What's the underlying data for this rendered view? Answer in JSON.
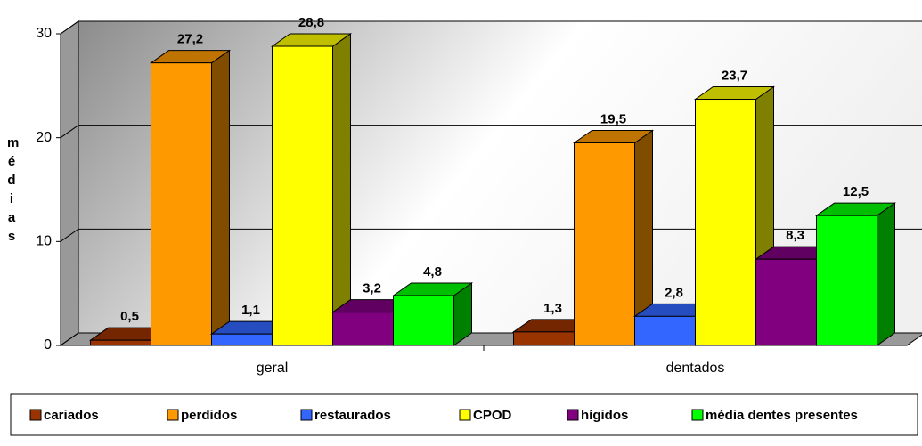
{
  "chart_data": {
    "type": "bar3d",
    "ylabel": "médias",
    "categories": [
      "geral",
      "dentados"
    ],
    "series": [
      {
        "name": "cariados",
        "color": "#993300",
        "values": [
          0.5,
          1.3
        ],
        "value_labels": [
          "0,5",
          "1,3"
        ]
      },
      {
        "name": "perdidos",
        "color": "#FF9900",
        "values": [
          27.2,
          19.5
        ],
        "value_labels": [
          "27,2",
          "19,5"
        ]
      },
      {
        "name": "restaurados",
        "color": "#3366FF",
        "values": [
          1.1,
          2.8
        ],
        "value_labels": [
          "1,1",
          "2,8"
        ]
      },
      {
        "name": "CPOD",
        "color": "#FFFF00",
        "values": [
          28.8,
          23.7
        ],
        "value_labels": [
          "28,8",
          "23,7"
        ]
      },
      {
        "name": "hígidos",
        "color": "#800080",
        "values": [
          3.2,
          8.3
        ],
        "value_labels": [
          "3,2",
          "8,3"
        ]
      },
      {
        "name": "média dentes presentes",
        "color": "#00FF00",
        "values": [
          4.8,
          12.5
        ],
        "value_labels": [
          "4,8",
          "12,5"
        ]
      }
    ],
    "ylim": [
      0,
      30
    ],
    "yticks": [
      0,
      10,
      20,
      30
    ],
    "grid": true,
    "legend": "bottom"
  }
}
